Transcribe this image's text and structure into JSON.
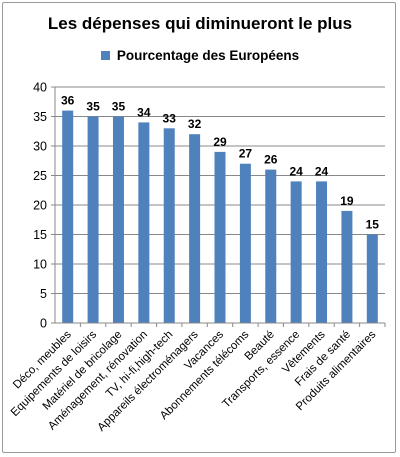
{
  "chart_data": {
    "type": "bar",
    "title": "Les dépenses qui diminueront le plus",
    "categories": [
      "Déco, meubles",
      "Equipements de loisirs",
      "Matériel de bricolage",
      "Aménagement, rénovation",
      "TV, hi-fi,high-tech",
      "Appareils électroménagers",
      "Vacances",
      "Abonnements télécoms",
      "Beauté",
      "Transports, essence",
      "Vêtements",
      "Frais de santé",
      "Produits alimentaires"
    ],
    "series": [
      {
        "name": "Pourcentage des Européens",
        "values": [
          36,
          35,
          35,
          34,
          33,
          32,
          29,
          27,
          26,
          24,
          24,
          19,
          15
        ]
      }
    ],
    "y_ticks": [
      "0",
      "5",
      "10",
      "15",
      "20",
      "25",
      "30",
      "35",
      "40"
    ],
    "ylim": [
      0,
      40
    ],
    "grid": true,
    "legend_position": "top",
    "bar_color": "#4f81bd",
    "grid_color": "#888888"
  }
}
